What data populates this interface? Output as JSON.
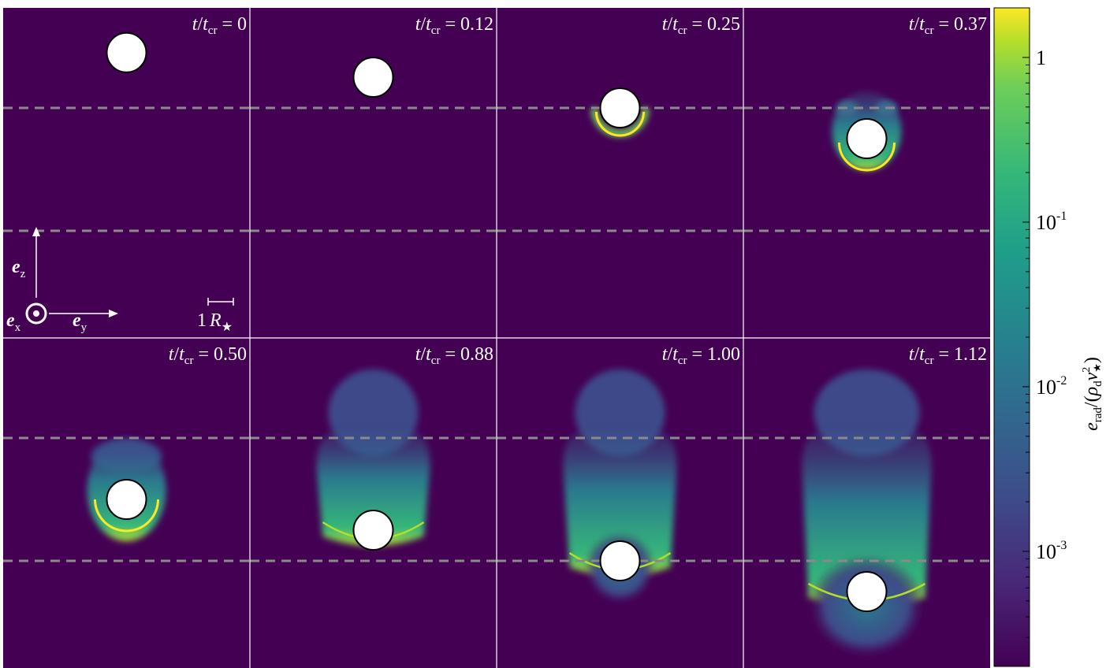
{
  "panels": [
    {
      "time_value": "0",
      "star_y": 0.0,
      "star_z": 3.8,
      "plume": "none"
    },
    {
      "time_value": "0.12",
      "star_y": 0.0,
      "star_z": 3.0,
      "plume": "none"
    },
    {
      "time_value": "0.25",
      "star_y": 0.0,
      "star_z": 2.0,
      "plume": "cap"
    },
    {
      "time_value": "0.37",
      "star_y": 0.0,
      "star_z": 1.0,
      "plume": "cup"
    },
    {
      "time_value": "0.50",
      "star_y": 0.0,
      "star_z": 0.0,
      "plume": "small"
    },
    {
      "time_value": "0.88",
      "star_y": 0.0,
      "star_z": -1.0,
      "plume": "large"
    },
    {
      "time_value": "1.00",
      "star_y": 0.0,
      "star_z": -2.0,
      "plume": "large_below"
    },
    {
      "time_value": "1.12",
      "star_y": 0.0,
      "star_z": -3.0,
      "plume": "larger_below"
    }
  ],
  "time_label": {
    "t": "t",
    "over": "/",
    "tcr": "t",
    "cr_sub": "cr",
    "eq": " = "
  },
  "axes_indicator": {
    "ez_bold": "e",
    "ez_sub": "z",
    "ex_bold": "e",
    "ex_sub": "x",
    "ey_bold": "e",
    "ey_sub": "y"
  },
  "scale_bar": {
    "number": "1",
    "symbol": "R",
    "star": "★"
  },
  "dashed_lines_z": [
    2.0,
    -2.0
  ],
  "colorbar": {
    "scale": "log",
    "range": [
      0.0002,
      2.0
    ],
    "colormap": "viridis",
    "ticks": [
      {
        "value": 1.0,
        "mant": "1",
        "exp": ""
      },
      {
        "value": 0.1,
        "mant": "10",
        "exp": "-1"
      },
      {
        "value": 0.01,
        "mant": "10",
        "exp": "-2"
      },
      {
        "value": 0.001,
        "mant": "10",
        "exp": "-3"
      }
    ],
    "label_parts": {
      "e": "e",
      "rad": "rad",
      "slash": "/(",
      "rho": "ρ",
      "d": "d",
      "v": "v",
      "two": "2",
      "star": "★",
      "close": ")"
    }
  },
  "colors": {
    "background": "#440154",
    "divider": "#ffffff",
    "dashed": "#8a8a8a",
    "star_fill": "#ffffff",
    "star_stroke": "#000000"
  }
}
